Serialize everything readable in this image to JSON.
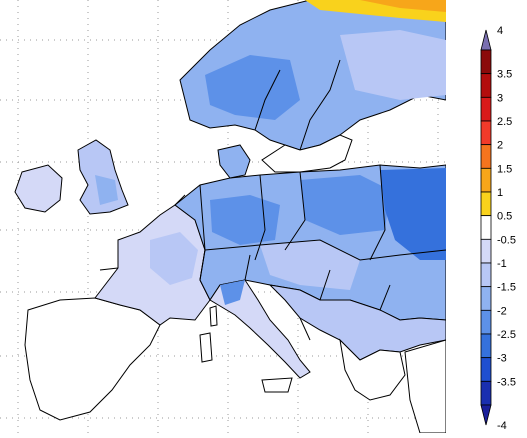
{
  "map": {
    "description_visible_only": true
  },
  "colorbar": {
    "labels": [
      "4",
      "3.5",
      "3",
      "2.5",
      "2",
      "1.5",
      "1",
      "0.5",
      "-0.5",
      "-1",
      "-1.5",
      "-2",
      "-2.5",
      "-3",
      "-3.5",
      "-4"
    ],
    "colors": [
      "#8b0a0a",
      "#b30d0d",
      "#d91a1a",
      "#f23a2a",
      "#f5741e",
      "#f7a61a",
      "#f9d21c",
      "#ffffff",
      "#d4d9f7",
      "#b8c7f5",
      "#8fb2f0",
      "#5d91e8",
      "#3571dc",
      "#1f4fd0",
      "#1a2fb0"
    ],
    "top_arrow_color": "#7a6fb0",
    "bottom_arrow_color": "#1a1f9a"
  }
}
